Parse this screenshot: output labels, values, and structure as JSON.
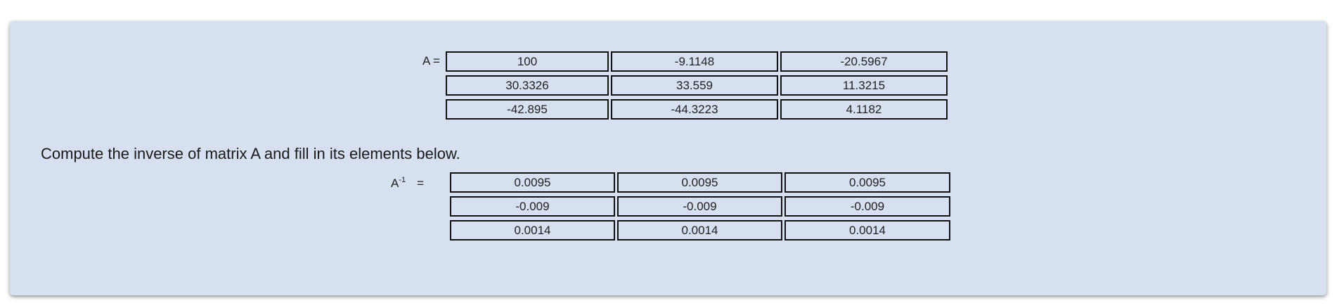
{
  "matrix_a": {
    "label": "A =",
    "rows": [
      [
        "100",
        "-9.1148",
        "-20.5967"
      ],
      [
        "30.3326",
        "33.559",
        "11.3215"
      ],
      [
        "-42.895",
        "-44.3223",
        "4.1182"
      ]
    ]
  },
  "prompt": "Compute the inverse of matrix A and fill in its elements below.",
  "inverse": {
    "label_base": "A",
    "label_sup": "-1",
    "label_eq": "=",
    "rows": [
      [
        "0.0095",
        "0.0095",
        "0.0095"
      ],
      [
        "-0.009",
        "-0.009",
        "-0.009"
      ],
      [
        "0.0014",
        "0.0014",
        "0.0014"
      ]
    ]
  }
}
